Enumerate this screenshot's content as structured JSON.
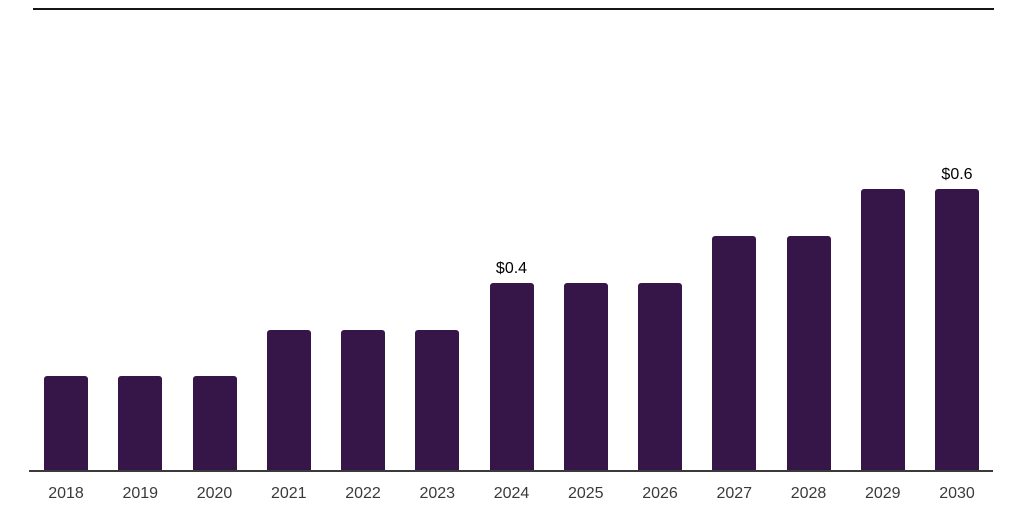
{
  "chart_data": {
    "type": "bar",
    "title": "",
    "xlabel": "",
    "ylabel": "",
    "categories": [
      "2018",
      "2019",
      "2020",
      "2021",
      "2022",
      "2023",
      "2024",
      "2025",
      "2026",
      "2027",
      "2028",
      "2029",
      "2030"
    ],
    "values": [
      0.2,
      0.2,
      0.2,
      0.3,
      0.3,
      0.3,
      0.4,
      0.4,
      0.4,
      0.5,
      0.5,
      0.6,
      0.6
    ],
    "annotations": [
      {
        "category": "2024",
        "text": "$0.4"
      },
      {
        "category": "2030",
        "text": "$0.6"
      }
    ],
    "ylim": [
      0,
      0.66
    ],
    "grid": false,
    "legend": false,
    "colors": {
      "bar": "#361549",
      "axis": "#3a3a3a",
      "tick_label": "#3a3a3a",
      "annotation": "#000000",
      "top_border": "#161616"
    }
  }
}
